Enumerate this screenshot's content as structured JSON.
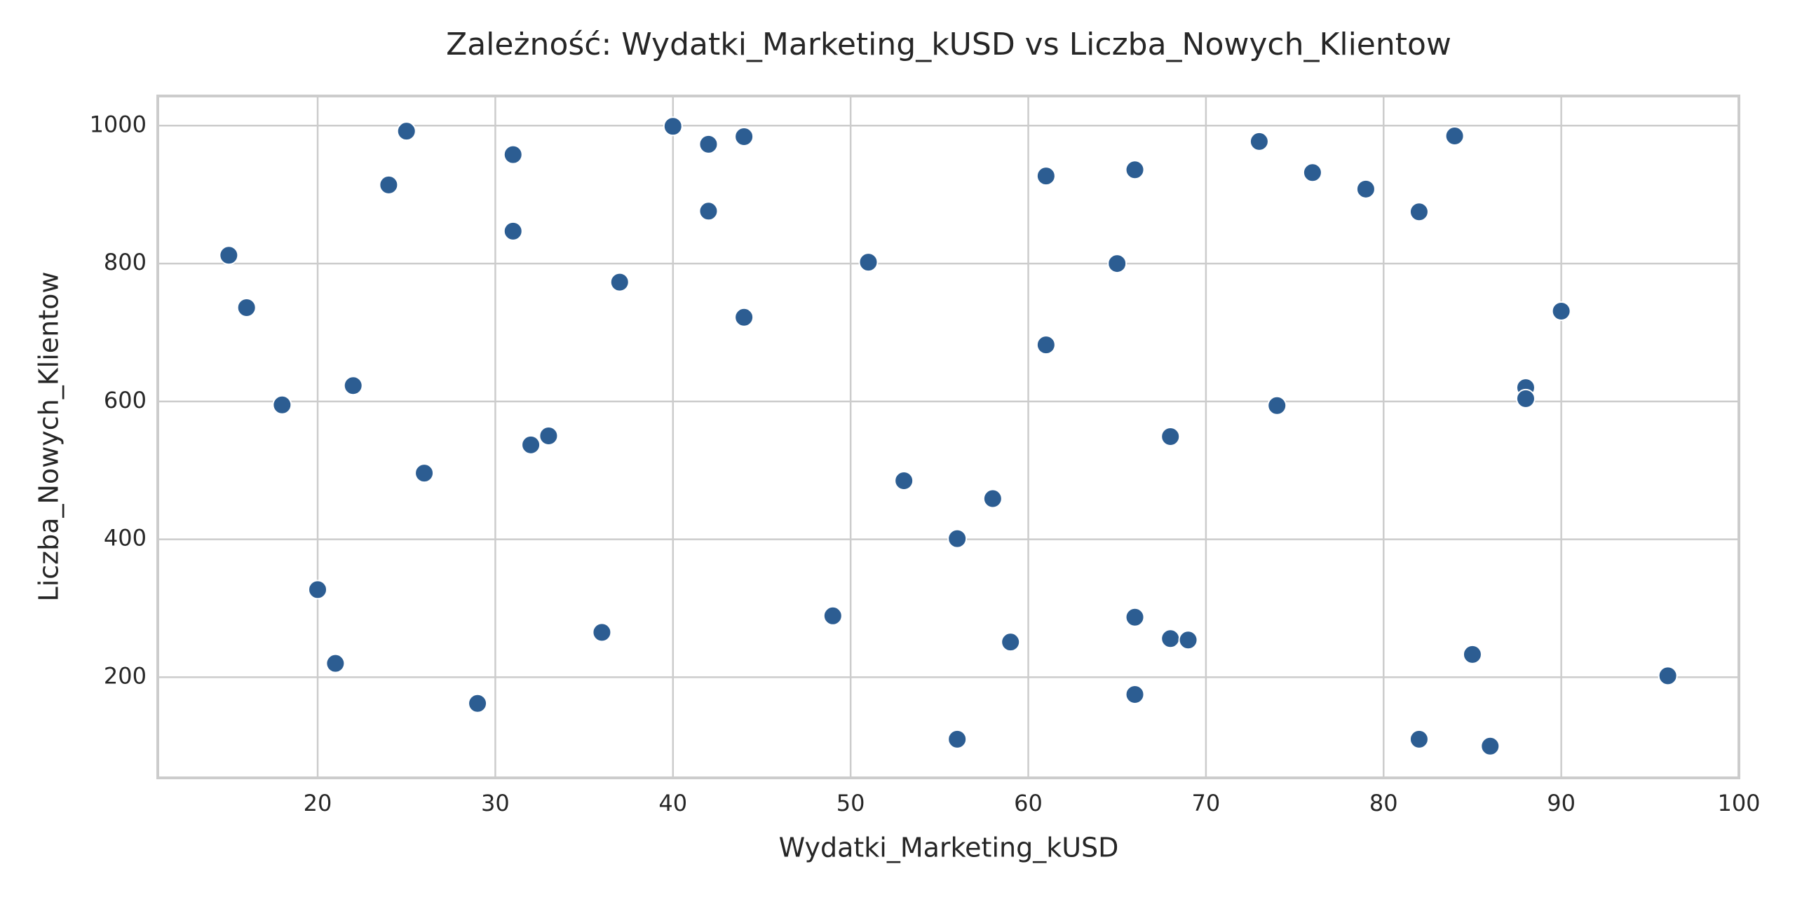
{
  "chart_data": {
    "type": "scatter",
    "title": "Zależność: Wydatki_Marketing_kUSD vs Liczba_Nowych_Klientow",
    "x_label": "Wydatki_Marketing_kUSD",
    "y_label": "Liczba_Nowych_Klientow",
    "color": "#2c5d92",
    "grid": true,
    "xlim": [
      11,
      100
    ],
    "ylim": [
      54,
      1043
    ],
    "xticks": [
      20,
      30,
      40,
      50,
      60,
      70,
      80,
      90,
      100
    ],
    "yticks": [
      200,
      400,
      600,
      800,
      1000
    ],
    "x": [
      15,
      16,
      18,
      20,
      21,
      22,
      24,
      25,
      26,
      29,
      31,
      31,
      32,
      33,
      36,
      37,
      40,
      42,
      42,
      44,
      44,
      49,
      51,
      53,
      56,
      56,
      58,
      59,
      61,
      61,
      65,
      66,
      66,
      66,
      68,
      68,
      69,
      73,
      74,
      76,
      79,
      82,
      82,
      84,
      85,
      86,
      88,
      88,
      90,
      96
    ],
    "values": [
      812,
      736,
      595,
      327,
      220,
      623,
      914,
      992,
      496,
      162,
      958,
      847,
      537,
      550,
      265,
      773,
      999,
      973,
      876,
      984,
      722,
      289,
      802,
      485,
      401,
      110,
      459,
      251,
      927,
      682,
      800,
      936,
      287,
      175,
      549,
      256,
      254,
      977,
      594,
      932,
      908,
      875,
      110,
      985,
      233,
      100,
      620,
      604,
      731,
      202
    ]
  }
}
